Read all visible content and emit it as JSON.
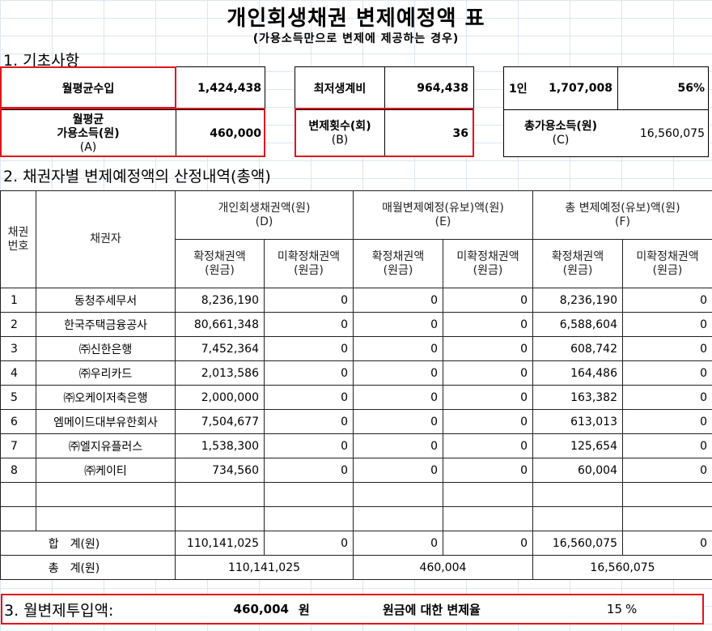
{
  "title": "개인회생채권 변제예정액 표",
  "subtitle": "(가용소득만으로 변제에 제공하는 경우)",
  "section1": {
    "heading": "1. 기초사항",
    "monthly_income_label": "월평균수입",
    "monthly_income": "1,424,438",
    "available_income_label_1": "월평균",
    "available_income_label_2": "가용소득(원)",
    "available_income_label_3": "(A)",
    "available_income": "460,000",
    "min_living_cost_label": "최저생계비",
    "min_living_cost": "964,438",
    "repayment_count_label_1": "변제횟수(회)",
    "repayment_count_label_2": "(B)",
    "repayment_count": "36",
    "household_label": "1인",
    "household_amount": "1,707,008",
    "household_percent": "56%",
    "total_available_label_1": "총가용소득(원)",
    "total_available_label_2": "(C)",
    "total_available": "16,560,075"
  },
  "section2": {
    "heading": "2. 채권자별 변제예정액의 산정내역(총액)",
    "headers": {
      "no_1": "채권",
      "no_2": "번호",
      "creditor": "채권자",
      "group_d_1": "개인회생채권액(원)",
      "group_d_2": "(D)",
      "group_e_1": "매월변제예정(유보)액(원)",
      "group_e_2": "(E)",
      "group_f_1": "총 변제예정(유보)액(원)",
      "group_f_2": "(F)",
      "confirmed_1": "확정채권액",
      "confirmed_2": "(원금)",
      "unconfirmed_1": "미확정채권액",
      "unconfirmed_2": "(원금)"
    },
    "rows": [
      {
        "no": "1",
        "creditor": "동청주세무서",
        "d1": "8,236,190",
        "d2": "0",
        "e1": "0",
        "e2": "0",
        "f1": "8,236,190",
        "f2": "0"
      },
      {
        "no": "2",
        "creditor": "한국주택금융공사",
        "d1": "80,661,348",
        "d2": "0",
        "e1": "0",
        "e2": "0",
        "f1": "6,588,604",
        "f2": "0"
      },
      {
        "no": "3",
        "creditor": "㈜신한은행",
        "d1": "7,452,364",
        "d2": "0",
        "e1": "0",
        "e2": "0",
        "f1": "608,742",
        "f2": "0"
      },
      {
        "no": "4",
        "creditor": "㈜우리카드",
        "d1": "2,013,586",
        "d2": "0",
        "e1": "0",
        "e2": "0",
        "f1": "164,486",
        "f2": "0"
      },
      {
        "no": "5",
        "creditor": "㈜오케이저축은행",
        "d1": "2,000,000",
        "d2": "0",
        "e1": "0",
        "e2": "0",
        "f1": "163,382",
        "f2": "0"
      },
      {
        "no": "6",
        "creditor": "엠메이드대부유한회사",
        "d1": "7,504,677",
        "d2": "0",
        "e1": "0",
        "e2": "0",
        "f1": "613,013",
        "f2": "0"
      },
      {
        "no": "7",
        "creditor": "㈜엘지유플러스",
        "d1": "1,538,300",
        "d2": "0",
        "e1": "0",
        "e2": "0",
        "f1": "125,654",
        "f2": "0"
      },
      {
        "no": "8",
        "creditor": "㈜케이티",
        "d1": "734,560",
        "d2": "0",
        "e1": "0",
        "e2": "0",
        "f1": "60,004",
        "f2": "0"
      }
    ],
    "subtotal_label": "합　계(원)",
    "subtotal": {
      "d1": "110,141,025",
      "d2": "0",
      "e1": "0",
      "e2": "0",
      "f1": "16,560,075",
      "f2": "0"
    },
    "total_label": "총　계(원)",
    "total": {
      "d": "110,141,025",
      "e": "460,004",
      "f": "16,560,075"
    }
  },
  "section3": {
    "heading": "3. 월변제투입액:",
    "amount": "460,004",
    "unit": "원",
    "rate_label": "원금에 대한 변제율",
    "rate": "15",
    "rate_unit": "%"
  }
}
